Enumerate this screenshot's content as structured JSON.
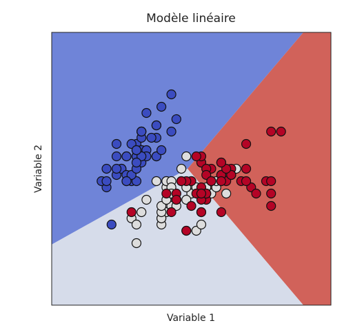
{
  "chart_data": {
    "type": "scatter",
    "title": "Modèle linéaire",
    "x_label": "Variable 1",
    "y_label": "Variable 2",
    "xlim": [
      3.3,
      8.9
    ],
    "ylim": [
      1.0,
      5.4
    ],
    "xticks": [],
    "yticks": [],
    "series": [
      {
        "color": "#3b4cc0",
        "x": [
          5.1,
          4.9,
          4.7,
          4.6,
          5.0,
          5.4,
          4.6,
          5.0,
          4.4,
          4.9,
          5.4,
          4.8,
          4.8,
          4.3,
          5.8,
          5.7,
          5.4,
          5.1,
          5.7,
          5.1,
          5.4,
          5.1,
          4.6,
          5.1,
          4.8,
          5.0,
          5.0,
          5.2,
          5.2,
          4.7,
          4.8,
          5.4,
          5.2,
          5.5,
          4.9,
          5.0,
          5.5,
          4.9,
          4.4,
          5.1,
          5.0,
          4.5,
          4.4,
          5.0,
          5.1,
          4.8,
          5.1,
          4.6,
          5.3,
          5.0
        ],
        "values": [
          3.5,
          3.0,
          3.2,
          3.1,
          3.6,
          3.9,
          3.4,
          3.4,
          2.9,
          3.1,
          3.7,
          3.4,
          3.0,
          3.0,
          4.0,
          4.4,
          3.9,
          3.5,
          3.8,
          3.8,
          3.4,
          3.7,
          3.6,
          3.3,
          3.4,
          3.0,
          3.4,
          3.5,
          3.4,
          3.2,
          3.1,
          3.4,
          4.1,
          4.2,
          3.1,
          3.2,
          3.5,
          3.6,
          3.0,
          3.4,
          3.5,
          2.3,
          3.2,
          3.5,
          3.8,
          3.0,
          3.8,
          3.2,
          3.7,
          3.3
        ]
      },
      {
        "color": "#dddddd",
        "x": [
          7.0,
          6.4,
          6.9,
          5.5,
          6.5,
          5.7,
          6.3,
          4.9,
          6.6,
          5.2,
          5.0,
          5.9,
          6.0,
          6.1,
          5.6,
          6.7,
          5.6,
          5.8,
          6.2,
          5.6,
          5.9,
          6.1,
          6.3,
          6.1,
          6.4,
          6.6,
          6.8,
          6.7,
          6.0,
          5.7,
          5.5,
          5.5,
          5.8,
          6.0,
          5.4,
          6.0,
          6.7,
          6.3,
          5.6,
          5.5,
          5.5,
          6.1,
          5.8,
          5.0,
          5.6,
          5.7,
          5.7,
          6.2,
          5.1,
          5.7
        ],
        "values": [
          3.2,
          3.2,
          3.1,
          2.3,
          2.8,
          2.8,
          3.3,
          2.4,
          2.9,
          2.7,
          2.0,
          3.0,
          2.2,
          2.9,
          2.9,
          3.1,
          3.0,
          2.7,
          2.2,
          2.5,
          3.2,
          2.8,
          2.5,
          2.8,
          2.9,
          3.0,
          2.8,
          3.0,
          2.9,
          2.6,
          2.4,
          2.4,
          2.7,
          2.7,
          3.0,
          3.4,
          3.1,
          2.3,
          3.0,
          2.5,
          2.6,
          3.0,
          2.6,
          2.3,
          2.7,
          3.0,
          2.9,
          2.9,
          2.5,
          2.8
        ]
      },
      {
        "color": "#b40426",
        "x": [
          6.3,
          5.8,
          7.1,
          6.3,
          6.5,
          7.6,
          4.9,
          7.3,
          6.7,
          7.2,
          6.5,
          6.4,
          6.8,
          5.7,
          5.8,
          6.4,
          6.5,
          7.7,
          7.7,
          6.0,
          6.9,
          5.6,
          7.7,
          6.3,
          6.7,
          7.2,
          6.2,
          6.1,
          6.4,
          7.2,
          7.4,
          7.9,
          6.4,
          6.3,
          6.1,
          7.7,
          6.3,
          6.4,
          6.0,
          6.9,
          6.7,
          6.9,
          5.8,
          6.8,
          6.7,
          6.7,
          6.3,
          6.5,
          6.2,
          5.9
        ],
        "values": [
          3.3,
          2.7,
          3.0,
          2.9,
          3.0,
          3.0,
          2.5,
          2.9,
          2.5,
          3.6,
          3.2,
          2.7,
          3.0,
          2.5,
          2.8,
          3.2,
          3.0,
          3.8,
          2.6,
          2.2,
          3.2,
          2.8,
          2.8,
          2.7,
          3.3,
          3.2,
          2.8,
          3.0,
          2.8,
          3.0,
          2.8,
          3.8,
          2.8,
          2.8,
          2.6,
          3.0,
          3.4,
          3.1,
          3.0,
          3.1,
          3.1,
          3.1,
          2.7,
          3.2,
          3.3,
          3.0,
          2.5,
          3.0,
          3.4,
          3.0
        ]
      }
    ]
  }
}
